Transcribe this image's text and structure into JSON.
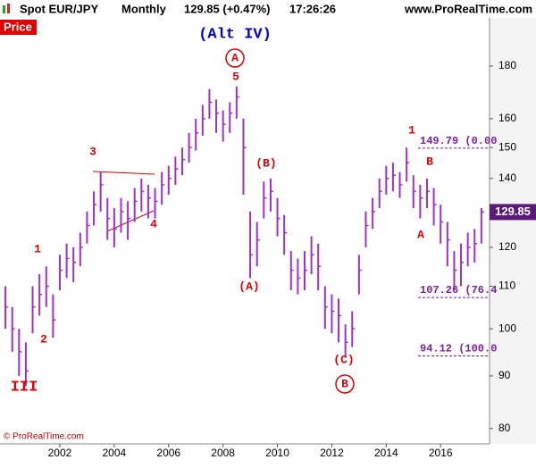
{
  "header": {
    "symbol": "Spot EUR/JPY",
    "period": "Monthly",
    "change": "129.85 (+0.47%)",
    "time": "17:26:26",
    "site": "www.ProRealTime.com"
  },
  "chart_data": {
    "type": "ohlc",
    "panel_label": "Price",
    "footer": "© ProRealTime.com",
    "color": "#a030c8",
    "log_scale": true,
    "grid": false,
    "x": [
      2000.0,
      2000.25,
      2000.5,
      2000.75,
      2001.0,
      2001.25,
      2001.5,
      2001.75,
      2002.0,
      2002.25,
      2002.5,
      2002.75,
      2003.0,
      2003.25,
      2003.5,
      2003.75,
      2004.0,
      2004.25,
      2004.5,
      2004.75,
      2005.0,
      2005.25,
      2005.5,
      2005.75,
      2006.0,
      2006.25,
      2006.5,
      2006.75,
      2007.0,
      2007.25,
      2007.5,
      2007.75,
      2008.0,
      2008.25,
      2008.5,
      2008.75,
      2009.0,
      2009.25,
      2009.5,
      2009.75,
      2010.0,
      2010.25,
      2010.5,
      2010.75,
      2011.0,
      2011.25,
      2011.5,
      2011.75,
      2012.0,
      2012.25,
      2012.5,
      2012.75,
      2013.0,
      2013.25,
      2013.5,
      2013.75,
      2014.0,
      2014.25,
      2014.5,
      2014.75,
      2015.0,
      2015.25,
      2015.5,
      2015.75,
      2016.0,
      2016.25,
      2016.5,
      2016.75,
      2017.0,
      2017.25,
      2017.5
    ],
    "high": [
      110,
      105,
      100,
      97,
      110,
      113,
      115,
      108,
      118,
      121,
      120,
      124,
      130,
      136,
      142,
      134,
      131,
      134,
      133,
      137,
      140,
      138,
      137,
      142,
      144,
      147,
      150,
      155,
      160,
      165,
      171,
      167,
      163,
      166,
      172,
      160,
      130,
      127,
      139,
      140,
      134,
      129,
      119,
      117,
      119,
      123,
      121,
      110,
      108,
      107,
      101,
      104,
      118,
      130,
      134,
      140,
      144,
      145,
      142,
      150,
      141,
      138,
      140,
      137,
      132,
      127,
      119,
      121,
      124,
      125,
      131
    ],
    "low": [
      100,
      95,
      90,
      88,
      99,
      103,
      105,
      98,
      109,
      112,
      111,
      115,
      121,
      126,
      130,
      122,
      120,
      124,
      122,
      127,
      130,
      128,
      128,
      132,
      135,
      138,
      141,
      145,
      149,
      154,
      160,
      155,
      152,
      155,
      160,
      135,
      112,
      115,
      128,
      130,
      123,
      118,
      109,
      108,
      109,
      113,
      109,
      100,
      99,
      97,
      94,
      96,
      108,
      120,
      125,
      131,
      135,
      136,
      134,
      139,
      131,
      128,
      131,
      126,
      121,
      115,
      109,
      110,
      115,
      116,
      121
    ],
    "close": [
      105,
      100,
      95,
      91,
      105,
      108,
      110,
      102,
      114,
      117,
      116,
      120,
      126,
      132,
      138,
      128,
      125,
      130,
      128,
      133,
      136,
      134,
      133,
      138,
      140,
      143,
      146,
      150,
      155,
      160,
      166,
      162,
      158,
      162,
      168,
      150,
      118,
      122,
      134,
      136,
      128,
      124,
      114,
      112,
      114,
      118,
      115,
      105,
      104,
      103,
      97,
      100,
      114,
      126,
      130,
      136,
      140,
      141,
      138,
      145,
      136,
      134,
      136,
      132,
      127,
      122,
      114,
      116,
      120,
      121,
      129.85
    ],
    "last_price": 129.85,
    "xlim": [
      1999.8,
      2017.8
    ],
    "xticks": [
      2002,
      2004,
      2006,
      2008,
      2010,
      2012,
      2014,
      2016
    ],
    "ylim": [
      77.3,
      200.5
    ],
    "yticks": [
      80,
      90,
      100,
      110,
      120,
      130,
      140,
      150,
      160,
      180
    ],
    "fib_levels": [
      {
        "value": 149.79,
        "label": "149.79 (0.00"
      },
      {
        "value": 107.26,
        "label": "107.26 (76.4"
      },
      {
        "value": 94.12,
        "label": "94.12 (100.0"
      }
    ],
    "annotations": [
      "(Alt IV)",
      "A",
      "5",
      "3",
      "4",
      "1",
      "2",
      "III",
      "(B)",
      "(A)",
      "(C)",
      "B",
      "1",
      "B",
      "A"
    ]
  }
}
